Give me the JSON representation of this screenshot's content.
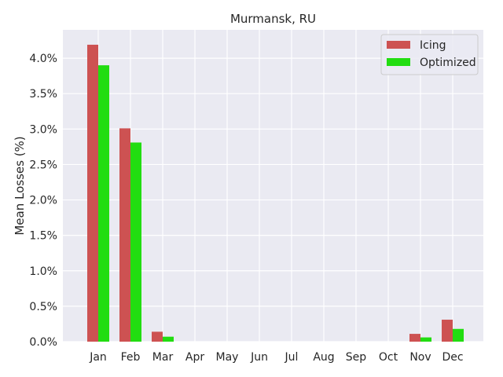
{
  "chart_data": {
    "type": "bar",
    "title": "Murmansk, RU",
    "xlabel": "",
    "ylabel": "Mean Losses (%)",
    "categories": [
      "Jan",
      "Feb",
      "Mar",
      "Apr",
      "May",
      "Jun",
      "Jul",
      "Aug",
      "Sep",
      "Oct",
      "Nov",
      "Dec"
    ],
    "series": [
      {
        "name": "Icing",
        "color": "#cd5252",
        "values": [
          4.19,
          3.01,
          0.14,
          0.0,
          0.0,
          0.0,
          0.0,
          0.0,
          0.0,
          0.0,
          0.11,
          0.31
        ]
      },
      {
        "name": "Optimized",
        "color": "#22dd11",
        "values": [
          3.9,
          2.81,
          0.07,
          0.0,
          0.0,
          0.0,
          0.0,
          0.0,
          0.0,
          0.0,
          0.06,
          0.18
        ]
      }
    ],
    "ylim": [
      0,
      4.4
    ],
    "yticks": [
      0.0,
      0.5,
      1.0,
      1.5,
      2.0,
      2.5,
      3.0,
      3.5,
      4.0
    ],
    "ytick_labels": [
      "0.0%",
      "0.5%",
      "1.0%",
      "1.5%",
      "2.0%",
      "2.5%",
      "3.0%",
      "3.5%",
      "4.0%"
    ],
    "grid": true,
    "legend_position": "top-right",
    "background_color": "#eaeaf2"
  }
}
